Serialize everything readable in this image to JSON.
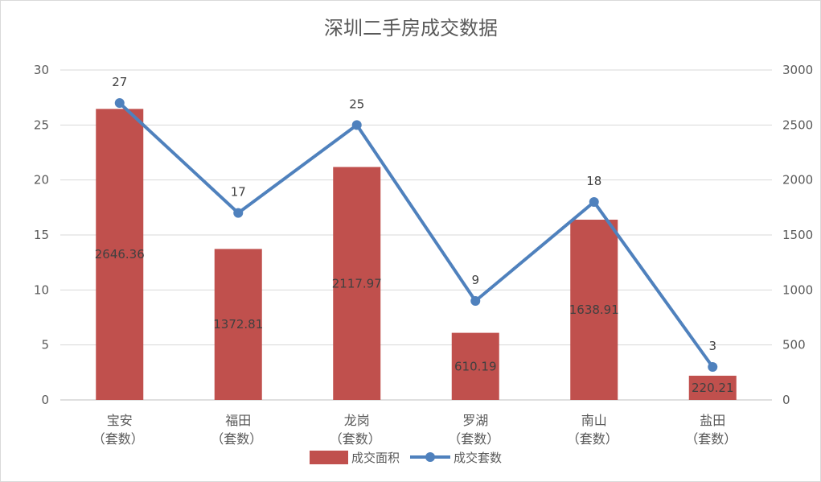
{
  "chart_data": {
    "type": "bar",
    "title": "深圳二手房成交数据",
    "categories": [
      [
        "宝安",
        "（套数）"
      ],
      [
        "福田",
        "（套数）"
      ],
      [
        "龙岗",
        "（套数）"
      ],
      [
        "罗湖",
        "（套数）"
      ],
      [
        "南山",
        "（套数）"
      ],
      [
        "盐田",
        "（套数）"
      ]
    ],
    "y_left": {
      "min": 0,
      "max": 30,
      "ticks": [
        "0",
        "5",
        "10",
        "15",
        "20",
        "25",
        "30"
      ]
    },
    "y_right": {
      "min": 0,
      "max": 3000,
      "ticks": [
        "0",
        "500",
        "1000",
        "1500",
        "2000",
        "2500",
        "3000"
      ]
    },
    "grid": true,
    "legend_position": "bottom",
    "series": [
      {
        "name": "成交面积",
        "type": "bar",
        "axis": "right",
        "color": "#c0504d",
        "values": [
          2646.36,
          1372.81,
          2117.97,
          610.19,
          1638.91,
          220.21
        ],
        "labels": [
          "2646.36",
          "1372.81",
          "2117.97",
          "610.19",
          "1638.91",
          "220.21"
        ]
      },
      {
        "name": "成交套数",
        "type": "line",
        "axis": "left",
        "color": "#4f81bd",
        "values": [
          27,
          17,
          25,
          9,
          18,
          3
        ],
        "labels": [
          "27",
          "17",
          "25",
          "9",
          "18",
          "3"
        ]
      }
    ]
  }
}
